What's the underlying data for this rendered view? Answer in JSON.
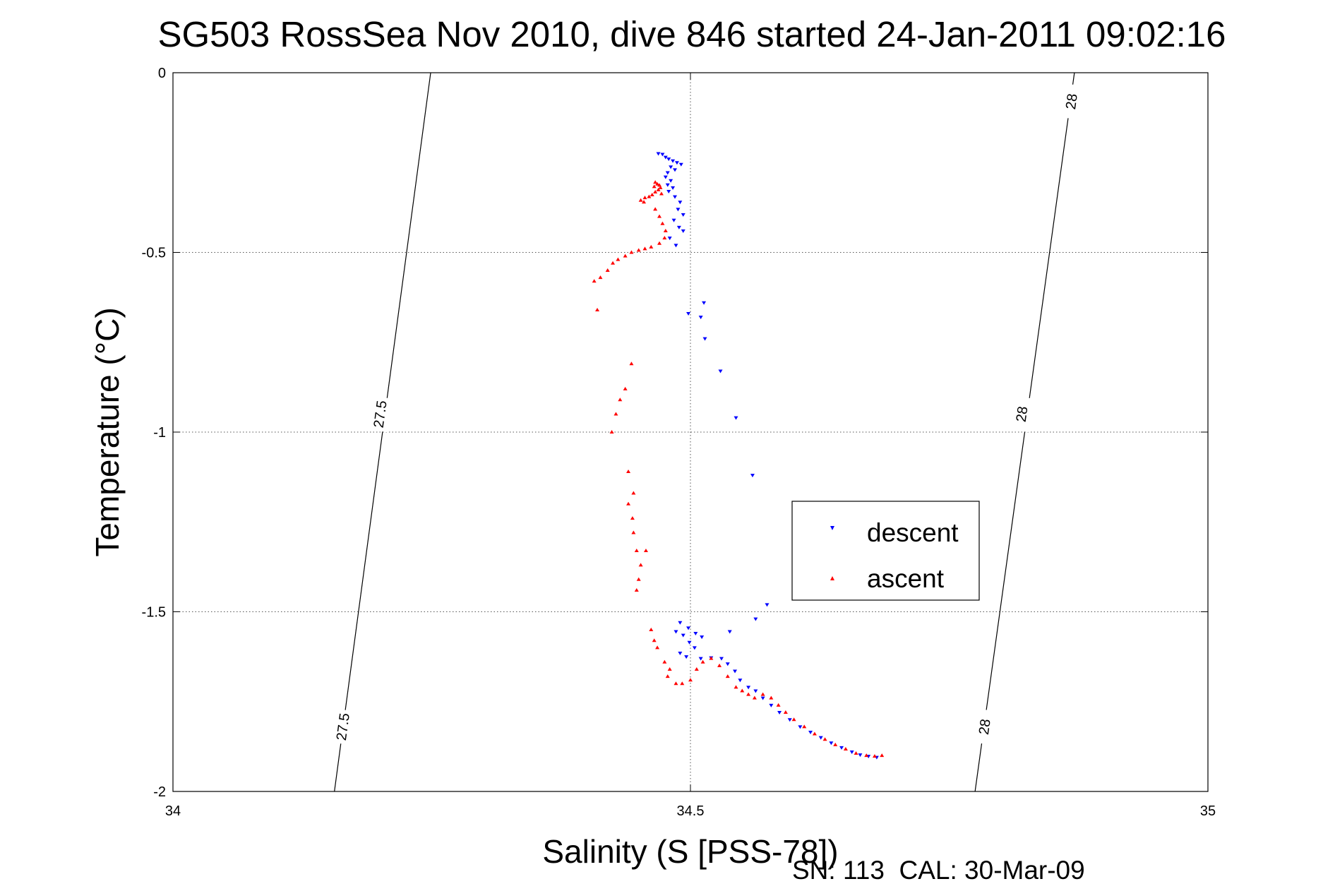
{
  "chart_data": {
    "type": "scatter",
    "title": "SG503 RossSea Nov 2010, dive 846 started 24-Jan-2011 09:02:16",
    "xlabel": "Salinity (S [PSS-78])",
    "ylabel": "Temperature (°C)",
    "footnote": "SN: 113  CAL: 30-Mar-09",
    "xlim": [
      34,
      35
    ],
    "ylim": [
      -2,
      0
    ],
    "xticks": [
      34,
      34.5,
      35
    ],
    "xtick_labels": [
      "34",
      "34.5",
      "35"
    ],
    "yticks": [
      0,
      -0.5,
      -1,
      -1.5,
      -2
    ],
    "ytick_labels": [
      "0",
      "-0.5",
      "-1",
      "-1.5",
      "-2"
    ],
    "grid": true,
    "legend_position": "center-right",
    "isopycnals": [
      {
        "label": "27.5",
        "points": [
          [
            34.249,
            0
          ],
          [
            34.156,
            -2
          ]
        ],
        "label_positions": [
          [
            34.2,
            -0.95
          ],
          [
            34.164,
            -1.82
          ]
        ]
      },
      {
        "label": "28",
        "points": [
          [
            34.871,
            0
          ],
          [
            34.775,
            -2
          ]
        ],
        "label_positions": [
          [
            34.868,
            -0.08
          ],
          [
            34.82,
            -0.95
          ],
          [
            34.784,
            -1.82
          ]
        ]
      }
    ],
    "series": [
      {
        "name": "descent",
        "color": "#0000ff",
        "marker": "triangle-down",
        "points": [
          [
            34.469,
            -0.225
          ],
          [
            34.473,
            -0.227
          ],
          [
            34.476,
            -0.235
          ],
          [
            34.479,
            -0.24
          ],
          [
            34.483,
            -0.245
          ],
          [
            34.487,
            -0.25
          ],
          [
            34.491,
            -0.255
          ],
          [
            34.481,
            -0.262
          ],
          [
            34.485,
            -0.27
          ],
          [
            34.478,
            -0.278
          ],
          [
            34.476,
            -0.29
          ],
          [
            34.481,
            -0.3
          ],
          [
            34.478,
            -0.312
          ],
          [
            34.483,
            -0.32
          ],
          [
            34.479,
            -0.33
          ],
          [
            34.485,
            -0.345
          ],
          [
            34.49,
            -0.36
          ],
          [
            34.488,
            -0.38
          ],
          [
            34.493,
            -0.395
          ],
          [
            34.484,
            -0.41
          ],
          [
            34.489,
            -0.43
          ],
          [
            34.493,
            -0.44
          ],
          [
            34.48,
            -0.46
          ],
          [
            34.486,
            -0.48
          ],
          [
            34.513,
            -0.64
          ],
          [
            34.498,
            -0.67
          ],
          [
            34.51,
            -0.68
          ],
          [
            34.514,
            -0.74
          ],
          [
            34.529,
            -0.83
          ],
          [
            34.544,
            -0.96
          ],
          [
            34.56,
            -1.12
          ],
          [
            34.574,
            -1.48
          ],
          [
            34.563,
            -1.52
          ],
          [
            34.49,
            -1.53
          ],
          [
            34.498,
            -1.545
          ],
          [
            34.486,
            -1.555
          ],
          [
            34.505,
            -1.56
          ],
          [
            34.493,
            -1.565
          ],
          [
            34.511,
            -1.57
          ],
          [
            34.538,
            -1.555
          ],
          [
            34.499,
            -1.585
          ],
          [
            34.504,
            -1.6
          ],
          [
            34.49,
            -1.615
          ],
          [
            34.496,
            -1.625
          ],
          [
            34.51,
            -1.63
          ],
          [
            34.52,
            -1.628
          ],
          [
            34.53,
            -1.63
          ],
          [
            34.536,
            -1.645
          ],
          [
            34.543,
            -1.665
          ],
          [
            34.548,
            -1.69
          ],
          [
            34.556,
            -1.71
          ],
          [
            34.563,
            -1.72
          ],
          [
            34.57,
            -1.74
          ],
          [
            34.578,
            -1.76
          ],
          [
            34.586,
            -1.78
          ],
          [
            34.596,
            -1.8
          ],
          [
            34.606,
            -1.82
          ],
          [
            34.616,
            -1.835
          ],
          [
            34.626,
            -1.85
          ],
          [
            34.636,
            -1.865
          ],
          [
            34.646,
            -1.878
          ],
          [
            34.656,
            -1.89
          ],
          [
            34.664,
            -1.898
          ],
          [
            34.672,
            -1.902
          ],
          [
            34.68,
            -1.905
          ]
        ]
      },
      {
        "name": "ascent",
        "color": "#ff0000",
        "marker": "triangle-up",
        "points": [
          [
            34.466,
            -0.305
          ],
          [
            34.468,
            -0.31
          ],
          [
            34.47,
            -0.313
          ],
          [
            34.465,
            -0.317
          ],
          [
            34.471,
            -0.32
          ],
          [
            34.469,
            -0.326
          ],
          [
            34.466,
            -0.332
          ],
          [
            34.472,
            -0.337
          ],
          [
            34.463,
            -0.34
          ],
          [
            34.46,
            -0.345
          ],
          [
            34.456,
            -0.348
          ],
          [
            34.452,
            -0.355
          ],
          [
            34.455,
            -0.36
          ],
          [
            34.466,
            -0.38
          ],
          [
            34.47,
            -0.4
          ],
          [
            34.473,
            -0.42
          ],
          [
            34.476,
            -0.44
          ],
          [
            34.475,
            -0.46
          ],
          [
            34.47,
            -0.475
          ],
          [
            34.462,
            -0.485
          ],
          [
            34.456,
            -0.49
          ],
          [
            34.45,
            -0.494
          ],
          [
            34.443,
            -0.5
          ],
          [
            34.437,
            -0.51
          ],
          [
            34.43,
            -0.52
          ],
          [
            34.425,
            -0.53
          ],
          [
            34.42,
            -0.55
          ],
          [
            34.413,
            -0.57
          ],
          [
            34.407,
            -0.58
          ],
          [
            34.41,
            -0.66
          ],
          [
            34.443,
            -0.81
          ],
          [
            34.437,
            -0.88
          ],
          [
            34.432,
            -0.91
          ],
          [
            34.428,
            -0.95
          ],
          [
            34.424,
            -1.0
          ],
          [
            34.44,
            -1.11
          ],
          [
            34.445,
            -1.17
          ],
          [
            34.44,
            -1.2
          ],
          [
            34.444,
            -1.24
          ],
          [
            34.445,
            -1.28
          ],
          [
            34.448,
            -1.33
          ],
          [
            34.457,
            -1.33
          ],
          [
            34.452,
            -1.37
          ],
          [
            34.45,
            -1.41
          ],
          [
            34.448,
            -1.44
          ],
          [
            34.462,
            -1.55
          ],
          [
            34.465,
            -1.58
          ],
          [
            34.468,
            -1.6
          ],
          [
            34.475,
            -1.64
          ],
          [
            34.48,
            -1.66
          ],
          [
            34.478,
            -1.68
          ],
          [
            34.486,
            -1.7
          ],
          [
            34.492,
            -1.7
          ],
          [
            34.5,
            -1.69
          ],
          [
            34.506,
            -1.66
          ],
          [
            34.512,
            -1.64
          ],
          [
            34.52,
            -1.63
          ],
          [
            34.528,
            -1.65
          ],
          [
            34.536,
            -1.68
          ],
          [
            34.544,
            -1.71
          ],
          [
            34.55,
            -1.72
          ],
          [
            34.556,
            -1.73
          ],
          [
            34.562,
            -1.74
          ],
          [
            34.57,
            -1.73
          ],
          [
            34.578,
            -1.74
          ],
          [
            34.585,
            -1.76
          ],
          [
            34.592,
            -1.78
          ],
          [
            34.6,
            -1.8
          ],
          [
            34.61,
            -1.82
          ],
          [
            34.62,
            -1.84
          ],
          [
            34.63,
            -1.855
          ],
          [
            34.64,
            -1.87
          ],
          [
            34.65,
            -1.882
          ],
          [
            34.66,
            -1.894
          ],
          [
            34.67,
            -1.9
          ],
          [
            34.678,
            -1.902
          ],
          [
            34.685,
            -1.9
          ]
        ]
      }
    ]
  }
}
